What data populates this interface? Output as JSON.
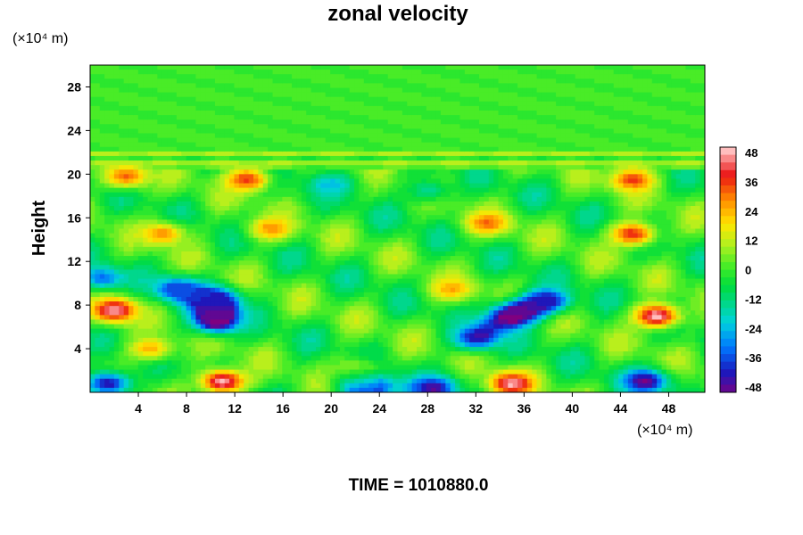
{
  "chart_data": {
    "type": "heatmap",
    "title": "zonal velocity",
    "ylabel": "Height",
    "y_unit": "(×10⁴ m)",
    "x_unit": "(×10⁴ m)",
    "x_ticks": [
      4,
      8,
      12,
      16,
      20,
      24,
      28,
      32,
      36,
      40,
      44,
      48
    ],
    "y_ticks": [
      4,
      8,
      12,
      16,
      20,
      24,
      28
    ],
    "xlim": [
      0,
      51
    ],
    "ylim": [
      0,
      30
    ],
    "colorbar": {
      "ticks": [
        48,
        36,
        24,
        12,
        0,
        -12,
        -24,
        -36,
        -48
      ],
      "range": [
        -48,
        48
      ]
    },
    "features": [
      {
        "x": 10.5,
        "y": 6.5,
        "value": -48
      },
      {
        "x": 10.5,
        "y": 8.5,
        "value": -38
      },
      {
        "x": 7,
        "y": 9.5,
        "value": -32
      },
      {
        "x": 35,
        "y": 7,
        "value": -48
      },
      {
        "x": 38,
        "y": 8.5,
        "value": -38
      },
      {
        "x": 32,
        "y": 5,
        "value": -40
      },
      {
        "x": 46,
        "y": 1,
        "value": -48
      },
      {
        "x": 1.5,
        "y": 0.8,
        "value": -40
      },
      {
        "x": 1,
        "y": 10.5,
        "value": -30
      },
      {
        "x": 2,
        "y": 7.5,
        "value": 48
      },
      {
        "x": 47,
        "y": 7,
        "value": 48
      },
      {
        "x": 35,
        "y": 0.8,
        "value": 48
      },
      {
        "x": 11,
        "y": 1,
        "value": 48
      },
      {
        "x": 45,
        "y": 14.5,
        "value": 38
      },
      {
        "x": 33,
        "y": 15.5,
        "value": 32
      },
      {
        "x": 6,
        "y": 14.5,
        "value": 28
      },
      {
        "x": 15,
        "y": 15,
        "value": 28
      },
      {
        "x": 30,
        "y": 9.5,
        "value": 26
      },
      {
        "x": 13,
        "y": 19.5,
        "value": 36
      },
      {
        "x": 45,
        "y": 19.5,
        "value": 36
      },
      {
        "x": 3,
        "y": 19.8,
        "value": 32
      },
      {
        "x": 20,
        "y": 19,
        "value": -22
      },
      {
        "x": 28,
        "y": 18.5,
        "value": -12
      },
      {
        "x": 5,
        "y": 4,
        "value": 24
      },
      {
        "x": 22,
        "y": 2,
        "value": 14
      },
      {
        "x": 23,
        "y": 0.4,
        "value": -40
      },
      {
        "x": 28.5,
        "y": 0.4,
        "value": -44
      }
    ]
  },
  "footer": {
    "time_label": "TIME = 1010880.0"
  }
}
